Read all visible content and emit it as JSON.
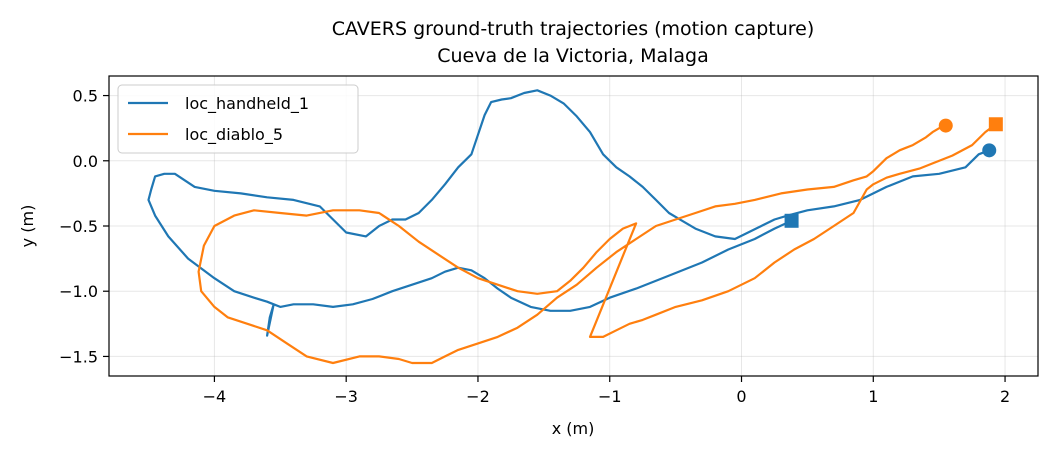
{
  "chart_data": {
    "type": "line",
    "title": "CAVERS ground-truth trajectories (motion capture)",
    "subtitle": "Cueva de la Victoria, Malaga",
    "xlabel": "x (m)",
    "ylabel": "y (m)",
    "xlim": [
      -4.8,
      2.25
    ],
    "ylim": [
      -1.65,
      0.65
    ],
    "xticks": [
      -4,
      -3,
      -2,
      -1,
      0,
      1,
      2
    ],
    "yticks": [
      -1.5,
      -1.0,
      -0.5,
      0.0,
      0.5
    ],
    "xtick_labels": [
      "−4",
      "−3",
      "−2",
      "−1",
      "0",
      "1",
      "2"
    ],
    "ytick_labels": [
      "−1.5",
      "−1.0",
      "−0.5",
      "0.0",
      "0.5"
    ],
    "grid": true,
    "legend_position": "top-left",
    "series": [
      {
        "name": "loc_handheld_1",
        "color": "#1f77b4",
        "start_marker": "square",
        "end_marker": "circle",
        "x": [
          0.38,
          0.25,
          0.1,
          -0.1,
          -0.3,
          -0.55,
          -0.8,
          -1.0,
          -1.15,
          -1.3,
          -1.45,
          -1.6,
          -1.75,
          -1.85,
          -1.95,
          -2.05,
          -2.15,
          -2.25,
          -2.35,
          -2.5,
          -2.65,
          -2.8,
          -2.95,
          -3.1,
          -3.25,
          -3.4,
          -3.5,
          -3.55,
          -3.58,
          -3.6,
          -3.55,
          -3.6,
          -3.7,
          -3.85,
          -4.0,
          -4.2,
          -4.35,
          -4.45,
          -4.5,
          -4.48,
          -4.45,
          -4.38,
          -4.3,
          -4.15,
          -4.0,
          -3.8,
          -3.6,
          -3.4,
          -3.2,
          -3.0,
          -2.85,
          -2.75,
          -2.65,
          -2.55,
          -2.45,
          -2.35,
          -2.25,
          -2.15,
          -2.05,
          -2.0,
          -1.95,
          -1.9,
          -1.82,
          -1.75,
          -1.65,
          -1.55,
          -1.45,
          -1.35,
          -1.25,
          -1.15,
          -1.05,
          -0.95,
          -0.85,
          -0.75,
          -0.65,
          -0.55,
          -0.45,
          -0.35,
          -0.2,
          -0.05,
          0.05,
          0.15,
          0.25,
          0.35,
          0.5,
          0.7,
          0.9,
          1.1,
          1.3,
          1.5,
          1.7,
          1.8,
          1.88
        ],
        "y": [
          -0.46,
          -0.52,
          -0.6,
          -0.68,
          -0.78,
          -0.88,
          -0.98,
          -1.05,
          -1.12,
          -1.15,
          -1.15,
          -1.12,
          -1.05,
          -0.98,
          -0.9,
          -0.84,
          -0.82,
          -0.85,
          -0.9,
          -0.95,
          -1.0,
          -1.06,
          -1.1,
          -1.12,
          -1.1,
          -1.1,
          -1.12,
          -1.1,
          -1.2,
          -1.34,
          -1.1,
          -1.08,
          -1.05,
          -1.0,
          -0.9,
          -0.75,
          -0.58,
          -0.42,
          -0.3,
          -0.22,
          -0.12,
          -0.1,
          -0.1,
          -0.2,
          -0.23,
          -0.25,
          -0.28,
          -0.3,
          -0.35,
          -0.55,
          -0.58,
          -0.5,
          -0.45,
          -0.45,
          -0.4,
          -0.3,
          -0.18,
          -0.05,
          0.05,
          0.2,
          0.35,
          0.45,
          0.47,
          0.48,
          0.52,
          0.54,
          0.5,
          0.44,
          0.34,
          0.22,
          0.05,
          -0.05,
          -0.12,
          -0.2,
          -0.3,
          -0.4,
          -0.46,
          -0.52,
          -0.58,
          -0.6,
          -0.55,
          -0.5,
          -0.45,
          -0.42,
          -0.38,
          -0.35,
          -0.3,
          -0.2,
          -0.12,
          -0.1,
          -0.05,
          0.05,
          0.08
        ]
      },
      {
        "name": "loc_diablo_5",
        "color": "#ff7f0e",
        "start_marker": "square",
        "end_marker": "circle",
        "x": [
          1.93,
          1.85,
          1.75,
          1.6,
          1.45,
          1.35,
          1.2,
          1.1,
          1.0,
          0.95,
          0.85,
          0.7,
          0.55,
          0.4,
          0.25,
          0.1,
          -0.1,
          -0.3,
          -0.5,
          -0.65,
          -0.75,
          -0.85,
          -0.95,
          -1.05,
          -1.15,
          -0.8,
          -0.9,
          -1.0,
          -1.1,
          -1.2,
          -1.3,
          -1.4,
          -1.55,
          -1.7,
          -1.85,
          -2.0,
          -2.15,
          -2.3,
          -2.45,
          -2.6,
          -2.75,
          -2.9,
          -3.1,
          -3.3,
          -3.5,
          -3.7,
          -3.85,
          -4.0,
          -4.08,
          -4.12,
          -4.1,
          -4.0,
          -3.9,
          -3.75,
          -3.6,
          -3.45,
          -3.3,
          -3.1,
          -2.9,
          -2.75,
          -2.6,
          -2.5,
          -2.45,
          -2.35,
          -2.25,
          -2.15,
          -2.0,
          -1.85,
          -1.7,
          -1.55,
          -1.4,
          -1.25,
          -1.1,
          -0.95,
          -0.8,
          -0.65,
          -0.5,
          -0.35,
          -0.2,
          -0.05,
          0.1,
          0.3,
          0.5,
          0.7,
          0.85,
          0.95,
          1.0,
          1.05,
          1.1,
          1.15,
          1.2,
          1.25,
          1.3,
          1.35,
          1.4,
          1.45,
          1.5,
          1.55
        ],
        "y": [
          0.28,
          0.22,
          0.12,
          0.04,
          -0.02,
          -0.06,
          -0.1,
          -0.13,
          -0.18,
          -0.22,
          -0.4,
          -0.5,
          -0.6,
          -0.68,
          -0.78,
          -0.9,
          -1.0,
          -1.07,
          -1.12,
          -1.18,
          -1.22,
          -1.25,
          -1.3,
          -1.35,
          -1.35,
          -0.48,
          -0.52,
          -0.6,
          -0.7,
          -0.82,
          -0.92,
          -1.0,
          -1.02,
          -1.0,
          -0.95,
          -0.9,
          -0.82,
          -0.72,
          -0.62,
          -0.5,
          -0.4,
          -0.38,
          -0.38,
          -0.42,
          -0.4,
          -0.38,
          -0.42,
          -0.5,
          -0.65,
          -0.85,
          -1.0,
          -1.12,
          -1.2,
          -1.25,
          -1.3,
          -1.4,
          -1.5,
          -1.55,
          -1.5,
          -1.5,
          -1.52,
          -1.55,
          -1.55,
          -1.55,
          -1.5,
          -1.45,
          -1.4,
          -1.35,
          -1.28,
          -1.18,
          -1.05,
          -0.95,
          -0.82,
          -0.7,
          -0.6,
          -0.5,
          -0.45,
          -0.4,
          -0.35,
          -0.33,
          -0.3,
          -0.25,
          -0.22,
          -0.2,
          -0.15,
          -0.12,
          -0.08,
          -0.03,
          0.02,
          0.05,
          0.08,
          0.1,
          0.12,
          0.15,
          0.18,
          0.22,
          0.25,
          0.27
        ]
      }
    ]
  }
}
